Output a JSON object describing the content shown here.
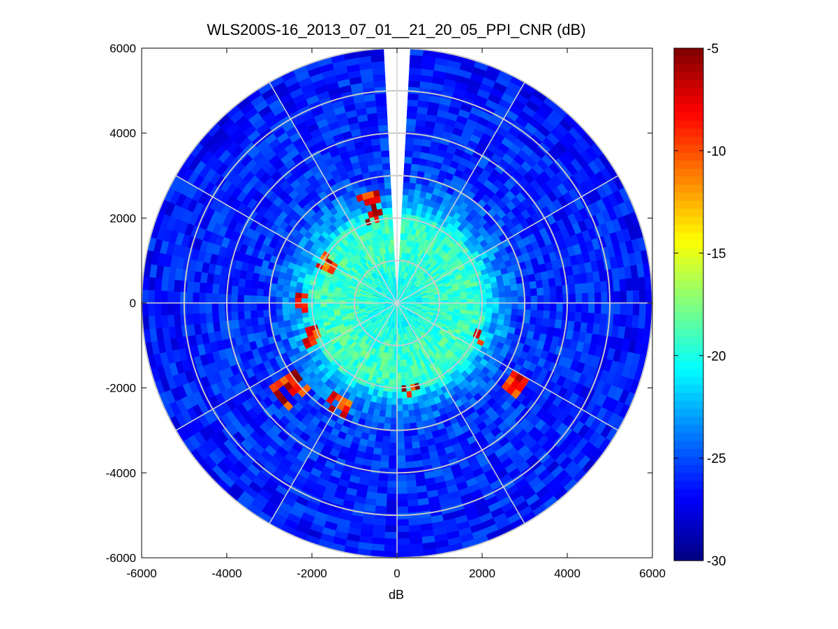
{
  "chart_data": {
    "type": "heatmap",
    "subtype": "polar PPI scan",
    "title": "WLS200S-16_2013_07_01__21_20_05_PPI_CNR (dB)",
    "xlabel": "dB",
    "ylabel": "",
    "xlim": [
      -6000,
      6000
    ],
    "ylim": [
      -6000,
      6000
    ],
    "xticks": [
      -6000,
      -4000,
      -2000,
      0,
      2000,
      4000,
      6000
    ],
    "yticks": [
      6000,
      4000,
      2000,
      0,
      -2000,
      -4000,
      -6000
    ],
    "colorbar": {
      "colormap": "jet",
      "range": [
        -30,
        -5
      ],
      "ticks": [
        -5,
        -10,
        -15,
        -20,
        -25,
        -30
      ]
    },
    "max_range": 6000,
    "grid": {
      "range_rings": [
        1000,
        2000,
        3000,
        4000,
        5000,
        6000
      ],
      "azimuth_spokes_deg": [
        0,
        30,
        60,
        90,
        120,
        150,
        180,
        210,
        240,
        270,
        300,
        330
      ]
    },
    "blocked_sector_deg": [
      -4,
      4
    ],
    "cnr_profile_by_range": [
      {
        "range": 0,
        "cnr": -20.5
      },
      {
        "range": 1500,
        "cnr": -19.0
      },
      {
        "range": 2000,
        "cnr": -19.5
      },
      {
        "range": 2300,
        "cnr": -22.5
      },
      {
        "range": 3000,
        "cnr": -25.5
      },
      {
        "range": 6000,
        "cnr": -26.5
      }
    ],
    "high_cnr_features": [
      {
        "azimuth_deg": 345,
        "range_min": 2000,
        "range_max": 2750,
        "cnr": -5
      },
      {
        "azimuth_deg": 300,
        "range_min": 1700,
        "range_max": 2100,
        "cnr": -6
      },
      {
        "azimuth_deg": 270,
        "range_min": 2100,
        "range_max": 2400,
        "cnr": -5
      },
      {
        "azimuth_deg": 248,
        "range_min": 2000,
        "range_max": 2400,
        "cnr": -6
      },
      {
        "azimuth_deg": 232,
        "range_min": 2900,
        "range_max": 3600,
        "cnr": -5
      },
      {
        "azimuth_deg": 210,
        "range_min": 2500,
        "range_max": 3000,
        "cnr": -6
      },
      {
        "azimuth_deg": 170,
        "range_min": 2000,
        "range_max": 2200,
        "cnr": -5
      },
      {
        "azimuth_deg": 115,
        "range_min": 1900,
        "range_max": 2300,
        "cnr": -5
      },
      {
        "azimuth_deg": 124,
        "range_min": 3100,
        "range_max": 3600,
        "cnr": -5
      }
    ]
  }
}
